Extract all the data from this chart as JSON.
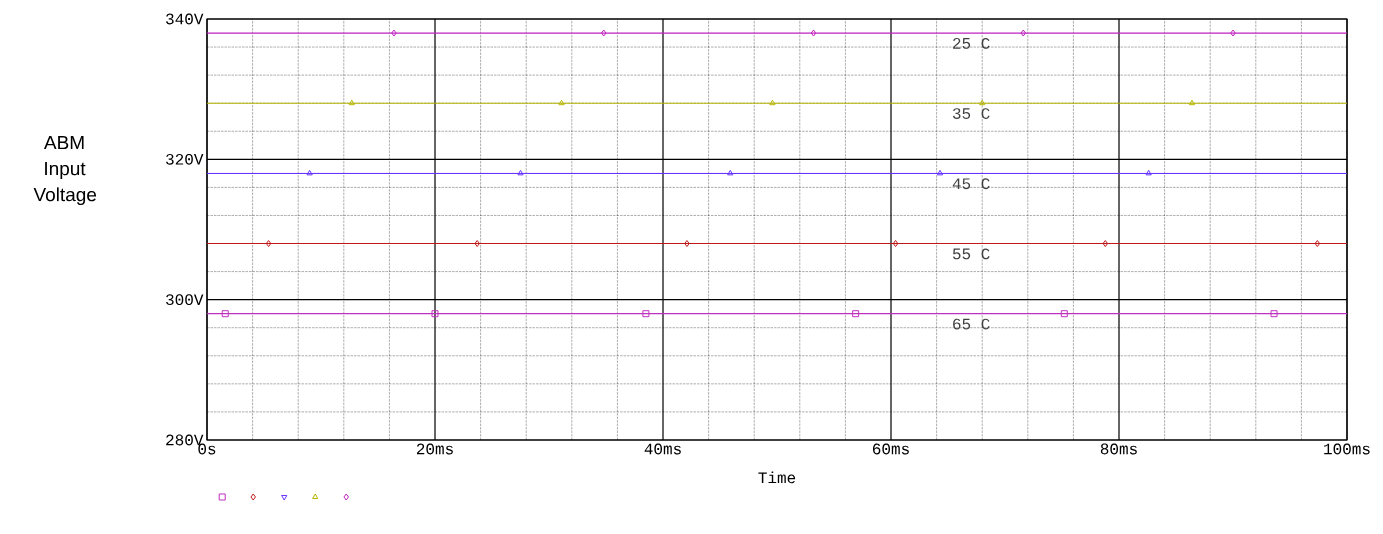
{
  "chart_data": {
    "type": "line",
    "xlabel": "Time",
    "ylabel": "ABM Input Voltage",
    "xlim": [
      0,
      100
    ],
    "ylim": [
      280,
      340
    ],
    "xticks": [
      {
        "value": 0,
        "label": "0s"
      },
      {
        "value": 20,
        "label": "20ms"
      },
      {
        "value": 40,
        "label": "40ms"
      },
      {
        "value": 60,
        "label": "60ms"
      },
      {
        "value": 80,
        "label": "80ms"
      },
      {
        "value": 100,
        "label": "100ms"
      }
    ],
    "yticks": [
      {
        "value": 280,
        "label": "280V"
      },
      {
        "value": 300,
        "label": "300V"
      },
      {
        "value": 320,
        "label": "320V"
      },
      {
        "value": 340,
        "label": "340V"
      }
    ],
    "grid": true,
    "series": [
      {
        "name": "25 C",
        "color": "#c020c0",
        "marker": "diamond",
        "x": [
          0,
          16.4,
          34.8,
          53.2,
          71.6,
          90.0,
          100
        ],
        "values": [
          338,
          338,
          338,
          338,
          338,
          338,
          338
        ]
      },
      {
        "name": "35 C",
        "color": "#b8b800",
        "marker": "triangle",
        "x": [
          0,
          12.7,
          31.1,
          49.6,
          68.0,
          86.4,
          100
        ],
        "values": [
          328,
          328,
          328,
          328,
          328,
          328,
          328
        ]
      },
      {
        "name": "45 C",
        "color": "#6633ff",
        "marker": "triangle-down",
        "x": [
          0,
          9.0,
          27.5,
          45.9,
          64.3,
          82.6,
          100
        ],
        "values": [
          318,
          318,
          318,
          318,
          318,
          318,
          318
        ]
      },
      {
        "name": "55 C",
        "color": "#c01818",
        "marker": "diamond",
        "x": [
          0,
          5.4,
          23.7,
          42.1,
          60.4,
          78.8,
          97.4,
          100
        ],
        "values": [
          308,
          308,
          308,
          308,
          308,
          308,
          308,
          308
        ]
      },
      {
        "name": "65 C",
        "color": "#c030c0",
        "marker": "square",
        "x": [
          0,
          1.6,
          20.0,
          38.5,
          56.9,
          75.2,
          93.6,
          100
        ],
        "values": [
          298,
          298,
          298,
          298,
          298,
          298,
          298,
          298
        ]
      }
    ]
  }
}
